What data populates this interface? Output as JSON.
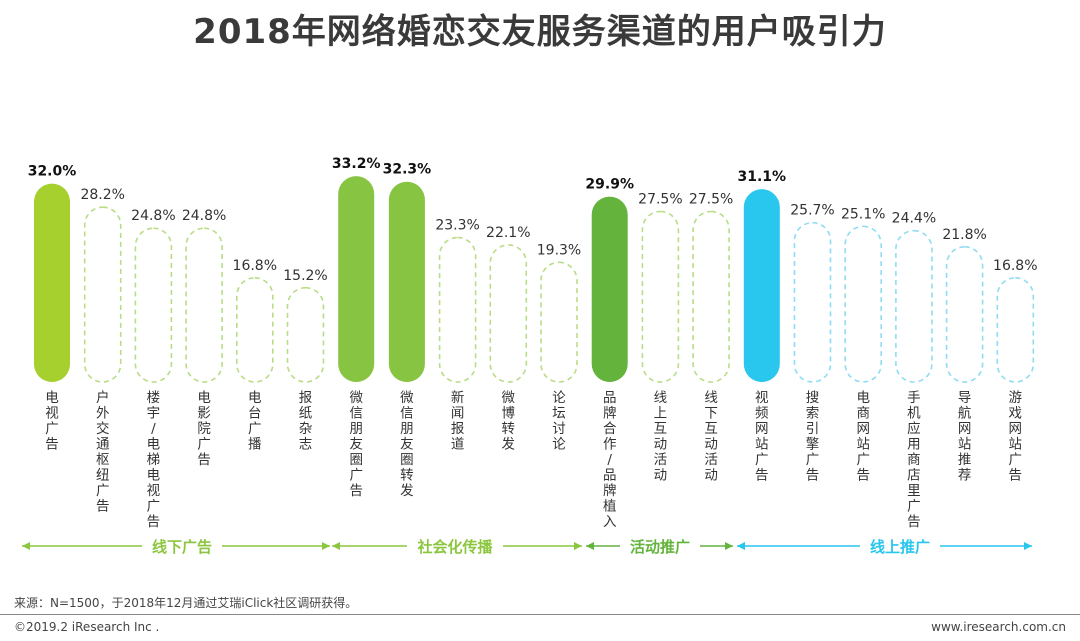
{
  "title": "2018年网络婚恋交友服务渠道的用户吸引力",
  "source": "来源：N=1500，于2018年12月通过艾瑞iClick社区调研获得。",
  "copyright": "©2019.2 iResearch Inc .",
  "website": "www.iresearch.com.cn",
  "colors": {
    "green_light": "#a6d02e",
    "green_mid": "#86c441",
    "green_dark": "#63b33d",
    "cyan": "#29c6ee"
  },
  "chart_data": {
    "type": "bar",
    "title": "2018年网络婚恋交友服务渠道的用户吸引力",
    "xlabel": "",
    "ylabel": "",
    "ylim": [
      0,
      35
    ],
    "unit": "%",
    "categories": [
      "电视广告",
      "户外交通枢纽广告",
      "楼宇/电梯电视广告",
      "电影院广告",
      "电台广播",
      "报纸杂志",
      "微信朋友圈广告",
      "微信朋友圈转发",
      "新闻报道",
      "微博转发",
      "论坛讨论",
      "品牌合作/品牌植入",
      "线上互动活动",
      "线下互动活动",
      "视频网站广告",
      "搜索引擎广告",
      "电商网站广告",
      "手机应用商店里广告",
      "导航网站推荐",
      "游戏网站广告"
    ],
    "values": [
      32.0,
      28.2,
      24.8,
      24.8,
      16.8,
      15.2,
      33.2,
      32.3,
      23.3,
      22.1,
      19.3,
      29.9,
      27.5,
      27.5,
      31.1,
      25.7,
      25.1,
      24.4,
      21.8,
      16.8
    ],
    "value_labels": [
      "32.0%",
      "28.2%",
      "24.8%",
      "24.8%",
      "16.8%",
      "15.2%",
      "33.2%",
      "32.3%",
      "23.3%",
      "22.1%",
      "19.3%",
      "29.9%",
      "27.5%",
      "27.5%",
      "31.1%",
      "25.7%",
      "25.1%",
      "24.4%",
      "21.8%",
      "16.8%"
    ],
    "category_lines": [
      [
        "电",
        "视",
        "广",
        "告"
      ],
      [
        "户",
        "外",
        "交",
        "通",
        "枢",
        "纽",
        "广",
        "告"
      ],
      [
        "楼",
        "宇",
        "/",
        "电",
        "梯",
        "电",
        "视",
        "广",
        "告"
      ],
      [
        "电",
        "影",
        "院",
        "广",
        "告"
      ],
      [
        "电",
        "台",
        "广",
        "播"
      ],
      [
        "报",
        "纸",
        "杂",
        "志"
      ],
      [
        "微",
        "信",
        "朋",
        "友",
        "圈",
        "广",
        "告"
      ],
      [
        "微",
        "信",
        "朋",
        "友",
        "圈",
        "转",
        "发"
      ],
      [
        "新",
        "闻",
        "报",
        "道"
      ],
      [
        "微",
        "博",
        "转",
        "发"
      ],
      [
        "论",
        "坛",
        "讨",
        "论"
      ],
      [
        "品",
        "牌",
        "合",
        "作",
        "/",
        "品",
        "牌",
        "植",
        "入"
      ],
      [
        "线",
        "上",
        "互",
        "动",
        "活",
        "动"
      ],
      [
        "线",
        "下",
        "互",
        "动",
        "活",
        "动"
      ],
      [
        "视",
        "频",
        "网",
        "站",
        "广",
        "告"
      ],
      [
        "搜",
        "索",
        "引",
        "擎",
        "广",
        "告"
      ],
      [
        "电",
        "商",
        "网",
        "站",
        "广",
        "告"
      ],
      [
        "手",
        "机",
        "应",
        "用",
        "商",
        "店",
        "里",
        "广",
        "告"
      ],
      [
        "导",
        "航",
        "网",
        "站",
        "推",
        "荐"
      ],
      [
        "游",
        "戏",
        "网",
        "站",
        "广",
        "告"
      ]
    ],
    "highlighted": [
      true,
      false,
      false,
      false,
      false,
      false,
      true,
      true,
      false,
      false,
      false,
      true,
      false,
      false,
      true,
      false,
      false,
      false,
      false,
      false
    ],
    "group_index": [
      0,
      0,
      0,
      0,
      0,
      0,
      1,
      1,
      1,
      1,
      1,
      2,
      2,
      2,
      3,
      3,
      3,
      3,
      3,
      3
    ],
    "groups": [
      {
        "name": "线下广告",
        "color": "#8cc63f"
      },
      {
        "name": "社会化传播",
        "color": "#8cc63f"
      },
      {
        "name": "活动推广",
        "color": "#63b33d"
      },
      {
        "name": "线上推广",
        "color": "#29c6ee"
      }
    ]
  }
}
